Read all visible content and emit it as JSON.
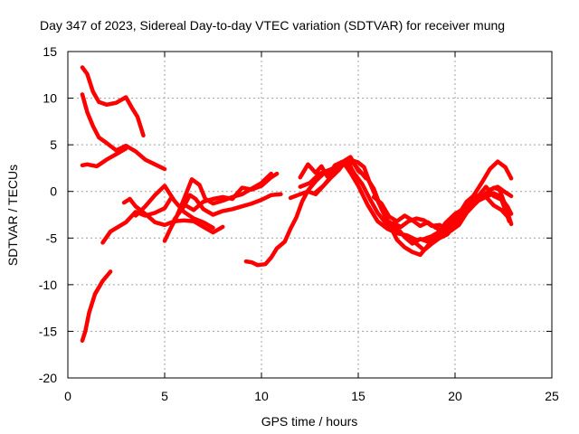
{
  "chart_data": {
    "type": "line",
    "title": "Day 347 of 2023, Sidereal Day-to-day VTEC variation (SDTVAR) for receiver mung",
    "xlabel": "GPS time / hours",
    "ylabel": "SDTVAR / TECUs",
    "xlim": [
      0,
      25
    ],
    "ylim": [
      -20,
      15
    ],
    "xticks": [
      0,
      5,
      10,
      15,
      20,
      25
    ],
    "yticks": [
      -20,
      -15,
      -10,
      -5,
      0,
      5,
      10,
      15
    ],
    "grid": true,
    "color": "#ff0000",
    "series": [
      {
        "name": "trace-1",
        "points": [
          [
            0.75,
            13.3
          ],
          [
            1.0,
            12.6
          ],
          [
            1.3,
            10.7
          ],
          [
            1.6,
            9.6
          ],
          [
            2.0,
            9.3
          ],
          [
            2.5,
            9.5
          ],
          [
            3.0,
            10.1
          ],
          [
            3.3,
            9.0
          ],
          [
            3.6,
            8.0
          ],
          [
            3.9,
            6.0
          ]
        ]
      },
      {
        "name": "trace-2",
        "points": [
          [
            0.75,
            10.4
          ],
          [
            1.0,
            8.5
          ],
          [
            1.3,
            7.0
          ],
          [
            1.6,
            5.8
          ],
          [
            2.0,
            5.2
          ],
          [
            2.5,
            4.4
          ],
          [
            3.0,
            4.9
          ],
          [
            3.5,
            4.3
          ],
          [
            4.0,
            3.4
          ],
          [
            4.5,
            2.9
          ],
          [
            5.0,
            2.4
          ]
        ]
      },
      {
        "name": "trace-3",
        "points": [
          [
            0.75,
            2.8
          ],
          [
            1.0,
            2.9
          ],
          [
            1.5,
            2.7
          ],
          [
            2.0,
            3.4
          ],
          [
            2.5,
            4.0
          ],
          [
            3.0,
            4.6
          ]
        ]
      },
      {
        "name": "trace-4",
        "points": [
          [
            0.75,
            -16.0
          ],
          [
            0.9,
            -15.0
          ],
          [
            1.1,
            -13.0
          ],
          [
            1.4,
            -11.0
          ],
          [
            1.8,
            -9.6
          ],
          [
            2.2,
            -8.6
          ]
        ]
      },
      {
        "name": "trace-5",
        "points": [
          [
            1.8,
            -5.5
          ],
          [
            2.2,
            -4.3
          ],
          [
            2.6,
            -3.8
          ],
          [
            3.0,
            -3.3
          ],
          [
            3.5,
            -2.2
          ],
          [
            4.0,
            -2.6
          ],
          [
            4.5,
            -2.3
          ],
          [
            5.0,
            -1.8
          ],
          [
            5.3,
            -0.8
          ]
        ]
      },
      {
        "name": "trace-6",
        "points": [
          [
            2.9,
            -1.2
          ],
          [
            3.2,
            -0.8
          ],
          [
            3.5,
            -1.6
          ],
          [
            4.0,
            -2.4
          ],
          [
            4.5,
            -3.3
          ],
          [
            5.0,
            -3.6
          ],
          [
            5.5,
            -3.2
          ],
          [
            6.0,
            -3.1
          ],
          [
            6.5,
            -3.2
          ],
          [
            7.0,
            -3.8
          ],
          [
            7.5,
            -4.4
          ],
          [
            8.0,
            -3.8
          ]
        ]
      },
      {
        "name": "trace-7",
        "points": [
          [
            5.0,
            -5.3
          ],
          [
            5.3,
            -4.0
          ],
          [
            5.6,
            -2.8
          ],
          [
            6.0,
            -0.8
          ],
          [
            6.4,
            1.3
          ],
          [
            6.8,
            0.7
          ],
          [
            7.1,
            -0.8
          ],
          [
            7.5,
            -1.3
          ],
          [
            8.0,
            -1.0
          ],
          [
            8.5,
            -0.6
          ],
          [
            9.0,
            -0.3
          ],
          [
            9.5,
            0.3
          ],
          [
            10.0,
            0.9
          ],
          [
            10.5,
            1.9
          ]
        ]
      },
      {
        "name": "trace-8",
        "points": [
          [
            5.5,
            -3.0
          ],
          [
            6.0,
            -1.6
          ],
          [
            6.3,
            -0.4
          ],
          [
            6.6,
            -0.8
          ],
          [
            7.0,
            -1.9
          ],
          [
            7.5,
            -2.5
          ],
          [
            8.0,
            -2.1
          ],
          [
            8.5,
            -1.9
          ],
          [
            9.0,
            -1.6
          ],
          [
            9.5,
            -1.3
          ],
          [
            10.0,
            -0.9
          ],
          [
            10.5,
            -0.4
          ],
          [
            11.0,
            -0.3
          ]
        ]
      },
      {
        "name": "trace-9",
        "points": [
          [
            3.5,
            -2.6
          ],
          [
            4.0,
            -1.6
          ],
          [
            4.5,
            -0.4
          ],
          [
            5.0,
            0.6
          ],
          [
            5.5,
            -1.0
          ],
          [
            6.0,
            -2.2
          ],
          [
            6.5,
            -2.9
          ],
          [
            7.0,
            -3.3
          ],
          [
            7.5,
            -3.9
          ]
        ]
      },
      {
        "name": "trace-10",
        "points": [
          [
            6.0,
            -1.4
          ],
          [
            6.5,
            -2.0
          ],
          [
            7.0,
            -1.1
          ],
          [
            7.5,
            -0.8
          ],
          [
            8.0,
            -0.6
          ],
          [
            8.5,
            -0.8
          ],
          [
            9.0,
            0.4
          ],
          [
            9.5,
            0.2
          ],
          [
            10.0,
            0.6
          ],
          [
            10.5,
            1.5
          ],
          [
            10.8,
            1.9
          ]
        ]
      },
      {
        "name": "trace-11",
        "points": [
          [
            9.2,
            -7.5
          ],
          [
            9.5,
            -7.6
          ],
          [
            9.8,
            -7.9
          ],
          [
            10.2,
            -7.8
          ],
          [
            10.5,
            -7.1
          ],
          [
            10.8,
            -6.1
          ],
          [
            11.2,
            -5.4
          ],
          [
            11.5,
            -4.0
          ],
          [
            11.8,
            -2.8
          ],
          [
            12.1,
            -1.1
          ],
          [
            12.4,
            0.1
          ],
          [
            12.8,
            1.1
          ],
          [
            13.2,
            1.9
          ],
          [
            13.6,
            2.4
          ],
          [
            14.0,
            2.6
          ],
          [
            14.4,
            3.0
          ],
          [
            14.7,
            3.1
          ],
          [
            15.0,
            2.4
          ],
          [
            15.4,
            1.4
          ]
        ]
      },
      {
        "name": "trace-12",
        "points": [
          [
            12.0,
            1.5
          ],
          [
            12.4,
            2.9
          ],
          [
            12.8,
            2.0
          ],
          [
            13.1,
            2.7
          ],
          [
            13.4,
            1.6
          ],
          [
            13.8,
            2.8
          ],
          [
            14.2,
            3.2
          ],
          [
            14.6,
            2.0
          ],
          [
            15.0,
            0.6
          ],
          [
            15.5,
            -1.5
          ],
          [
            16.0,
            -3.2
          ],
          [
            16.5,
            -4.0
          ],
          [
            17.0,
            -4.5
          ],
          [
            17.5,
            -4.7
          ],
          [
            18.0,
            -5.2
          ],
          [
            18.4,
            -5.1
          ],
          [
            18.8,
            -4.8
          ],
          [
            19.2,
            -4.3
          ],
          [
            19.5,
            -3.4
          ],
          [
            20.0,
            -2.4
          ],
          [
            20.5,
            -1.8
          ],
          [
            21.0,
            -1.2
          ],
          [
            21.5,
            -0.7
          ],
          [
            22.0,
            -0.2
          ],
          [
            22.3,
            -0.5
          ],
          [
            22.7,
            -1.6
          ],
          [
            22.9,
            -2.4
          ]
        ]
      },
      {
        "name": "trace-13",
        "points": [
          [
            12.0,
            0.5
          ],
          [
            12.5,
            0.9
          ],
          [
            13.0,
            1.9
          ],
          [
            13.5,
            2.3
          ],
          [
            14.0,
            2.5
          ],
          [
            14.3,
            3.1
          ],
          [
            14.6,
            3.4
          ],
          [
            15.0,
            3.1
          ],
          [
            15.3,
            2.6
          ],
          [
            15.6,
            0.9
          ],
          [
            16.0,
            -1.0
          ],
          [
            16.5,
            -3.1
          ],
          [
            17.0,
            -3.9
          ],
          [
            17.4,
            -4.9
          ],
          [
            17.8,
            -5.6
          ],
          [
            18.2,
            -5.1
          ],
          [
            18.6,
            -5.4
          ],
          [
            19.0,
            -5.1
          ],
          [
            19.4,
            -4.7
          ],
          [
            19.8,
            -4.2
          ],
          [
            20.2,
            -3.6
          ],
          [
            20.6,
            -2.3
          ],
          [
            21.0,
            -1.4
          ],
          [
            21.5,
            -0.4
          ],
          [
            22.0,
            0.4
          ],
          [
            22.3,
            0.2
          ],
          [
            22.6,
            -1.5
          ],
          [
            22.9,
            -3.5
          ]
        ]
      },
      {
        "name": "trace-14",
        "points": [
          [
            11.5,
            -0.7
          ],
          [
            12.0,
            -0.3
          ],
          [
            12.4,
            0.0
          ],
          [
            12.8,
            -0.3
          ],
          [
            13.2,
            0.6
          ],
          [
            13.6,
            1.5
          ],
          [
            14.0,
            2.3
          ],
          [
            14.4,
            3.4
          ],
          [
            14.8,
            1.9
          ],
          [
            15.2,
            0.8
          ],
          [
            15.6,
            -0.8
          ],
          [
            16.0,
            -2.3
          ],
          [
            16.5,
            -3.6
          ],
          [
            17.0,
            -4.3
          ],
          [
            17.5,
            -4.9
          ],
          [
            18.0,
            -5.6
          ],
          [
            18.4,
            -6.3
          ],
          [
            18.8,
            -5.6
          ],
          [
            19.2,
            -5.0
          ],
          [
            19.6,
            -4.6
          ],
          [
            20.0,
            -3.6
          ],
          [
            20.4,
            -2.5
          ],
          [
            20.8,
            -1.5
          ],
          [
            21.2,
            -0.5
          ],
          [
            21.6,
            0.5
          ],
          [
            22.0,
            -0.5
          ],
          [
            22.4,
            -0.9
          ],
          [
            22.8,
            -3.2
          ]
        ]
      },
      {
        "name": "trace-15",
        "points": [
          [
            12.8,
            -0.1
          ],
          [
            13.2,
            0.6
          ],
          [
            13.6,
            1.6
          ],
          [
            14.0,
            2.9
          ],
          [
            14.3,
            3.3
          ],
          [
            14.6,
            3.7
          ],
          [
            15.0,
            2.2
          ],
          [
            15.4,
            1.6
          ],
          [
            15.8,
            0.3
          ],
          [
            16.2,
            -1.9
          ],
          [
            16.6,
            -3.5
          ],
          [
            17.0,
            -5.2
          ],
          [
            17.4,
            -6.0
          ],
          [
            17.8,
            -6.5
          ],
          [
            18.2,
            -6.8
          ],
          [
            18.6,
            -5.8
          ],
          [
            19.0,
            -4.9
          ],
          [
            19.4,
            -4.4
          ],
          [
            19.8,
            -4.0
          ],
          [
            20.2,
            -3.0
          ],
          [
            20.6,
            -1.7
          ],
          [
            21.0,
            -0.3
          ],
          [
            21.4,
            1.0
          ],
          [
            21.8,
            2.4
          ],
          [
            22.2,
            3.2
          ],
          [
            22.6,
            2.6
          ],
          [
            22.9,
            1.4
          ]
        ]
      },
      {
        "name": "trace-16",
        "points": [
          [
            15.8,
            -0.6
          ],
          [
            16.2,
            -1.3
          ],
          [
            16.6,
            -2.7
          ],
          [
            17.0,
            -3.2
          ],
          [
            17.4,
            -2.6
          ],
          [
            17.8,
            -3.1
          ],
          [
            18.2,
            -3.7
          ],
          [
            18.6,
            -3.3
          ],
          [
            19.0,
            -3.9
          ],
          [
            19.4,
            -4.3
          ],
          [
            19.8,
            -3.3
          ],
          [
            20.2,
            -2.4
          ],
          [
            20.6,
            -1.1
          ],
          [
            21.0,
            -0.4
          ],
          [
            21.4,
            -0.6
          ],
          [
            21.8,
            0.2
          ],
          [
            22.2,
            0.5
          ],
          [
            22.6,
            -0.1
          ],
          [
            22.9,
            -0.5
          ]
        ]
      },
      {
        "name": "trace-17",
        "points": [
          [
            16.8,
            -3.4
          ],
          [
            17.2,
            -3.8
          ],
          [
            17.6,
            -3.2
          ],
          [
            18.0,
            -2.9
          ],
          [
            18.4,
            -3.1
          ],
          [
            18.8,
            -3.7
          ],
          [
            19.2,
            -3.6
          ],
          [
            19.6,
            -4.1
          ],
          [
            20.0,
            -2.8
          ],
          [
            20.4,
            -1.8
          ],
          [
            20.8,
            -1.3
          ],
          [
            21.2,
            -0.8
          ],
          [
            21.6,
            -0.6
          ],
          [
            22.0,
            -1.5
          ],
          [
            22.4,
            -2.0
          ],
          [
            22.8,
            -2.9
          ]
        ]
      }
    ]
  }
}
